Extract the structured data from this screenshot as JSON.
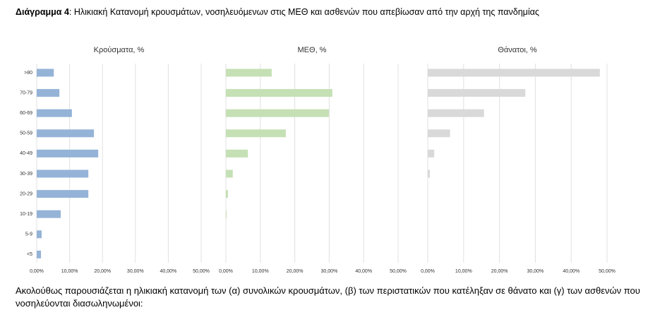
{
  "heading": {
    "label": "Διάγραμμα 4",
    "text": ": Ηλικιακή Κατανομή κρουσμάτων, νοσηλευόμενων στις ΜΕΘ και ασθενών που απεβίωσαν από την αρχή της πανδημίας"
  },
  "paragraph": "Ακολούθως παρουσιάζεται η ηλικιακή κατανομή των (α) συνολικών κρουσμάτων, (β) των περιστατικών που κατέληξαν σε θάνατο και (γ) των ασθενών που νοσηλεύονται διασωληνωμένοι:",
  "chart_data": {
    "type": "bar",
    "orientation": "horizontal",
    "grid": true,
    "categories": [
      ">80",
      "70-79",
      "60-69",
      "50-59",
      "40-49",
      "30-39",
      "20-29",
      "10-19",
      "5-9",
      "<5"
    ],
    "xlim": [
      0,
      50
    ],
    "xticks": [
      {
        "value": 0,
        "label": "0,00%"
      },
      {
        "value": 10,
        "label": "10,00%"
      },
      {
        "value": 20,
        "label": "20,00%"
      },
      {
        "value": 30,
        "label": "30,00%"
      },
      {
        "value": 40,
        "label": "40,00%"
      },
      {
        "value": 50,
        "label": "50,00%"
      }
    ],
    "series": [
      {
        "name": "Κρούσματα, %",
        "color": "#95b3d7",
        "values": [
          5.2,
          6.9,
          10.7,
          17.4,
          18.7,
          15.7,
          15.7,
          7.3,
          1.5,
          1.3
        ]
      },
      {
        "name": "ΜΕΘ, %",
        "color": "#c5e0b4",
        "values": [
          13.3,
          30.9,
          29.9,
          17.4,
          6.4,
          2.0,
          0.6,
          0.2,
          0,
          0
        ]
      },
      {
        "name": "Θάνατοι, %",
        "color": "#d9d9d9",
        "values": [
          48.0,
          27.2,
          15.7,
          6.2,
          1.8,
          0.6,
          0,
          0,
          0,
          0
        ]
      }
    ]
  }
}
